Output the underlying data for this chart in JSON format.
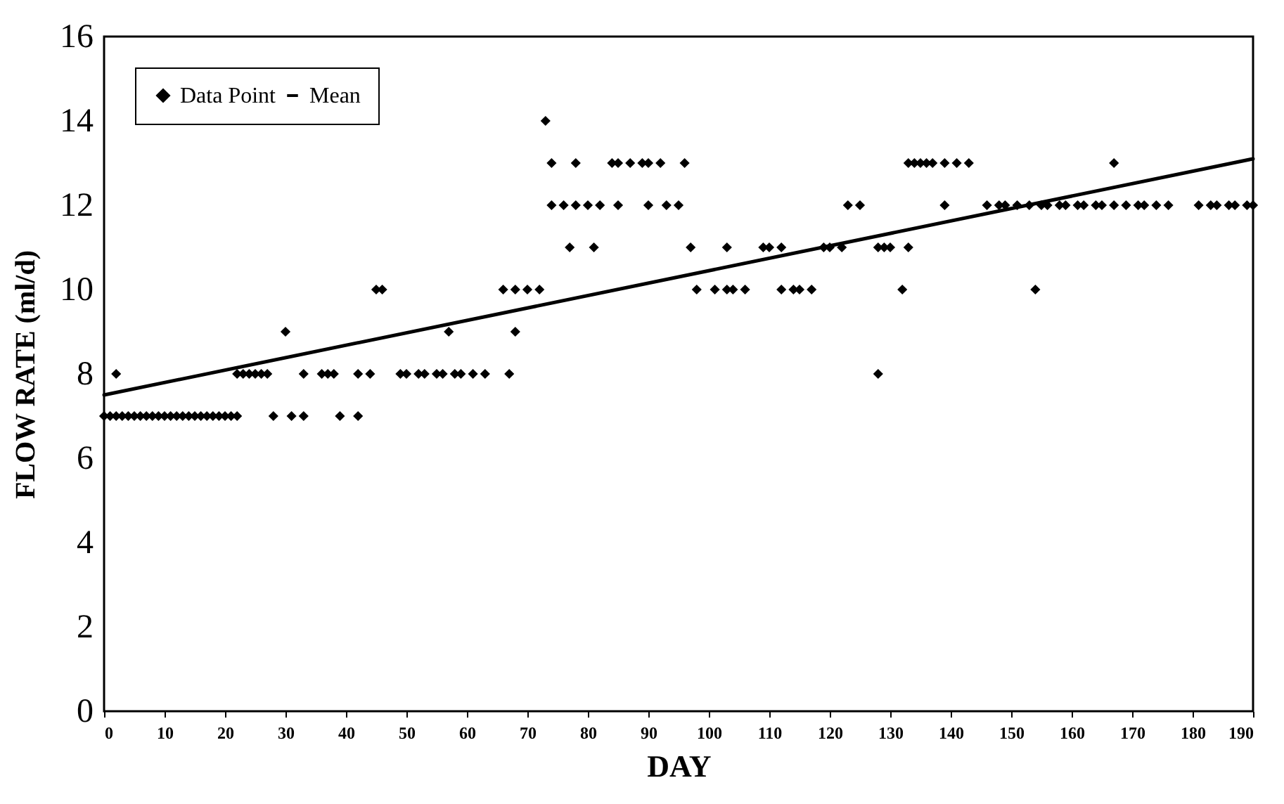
{
  "chart_data": {
    "type": "scatter",
    "xlabel": "DAY",
    "ylabel": "FLOW RATE (ml/d)",
    "xlim": [
      0,
      190
    ],
    "xticks": [
      0,
      10,
      20,
      30,
      40,
      50,
      60,
      70,
      80,
      90,
      100,
      110,
      120,
      130,
      140,
      150,
      160,
      170,
      180,
      190
    ],
    "ylim": [
      0,
      16
    ],
    "yticks": [
      0,
      2,
      4,
      6,
      8,
      10,
      12,
      14,
      16
    ],
    "grid": false,
    "legend": "top left",
    "series": [
      {
        "name": "Data Point",
        "color": "#000000",
        "marker": "diamond",
        "x": [
          0,
          1,
          2,
          3,
          4,
          5,
          6,
          7,
          8,
          9,
          10,
          11,
          12,
          13,
          14,
          15,
          16,
          17,
          18,
          19,
          20,
          21,
          22,
          28,
          31,
          33,
          39,
          42,
          2,
          22,
          23,
          24,
          25,
          26,
          27,
          33,
          36,
          37,
          38,
          42,
          44,
          49,
          50,
          52,
          53,
          55,
          56,
          58,
          59,
          61,
          63,
          67,
          128,
          30,
          57,
          68,
          45,
          46,
          66,
          68,
          70,
          72,
          98,
          101,
          103,
          104,
          106,
          112,
          114,
          115,
          117,
          132,
          154,
          77,
          81,
          97,
          103,
          109,
          110,
          112,
          119,
          120,
          122,
          128,
          129,
          130,
          133,
          74,
          76,
          78,
          80,
          82,
          85,
          90,
          93,
          95,
          123,
          125,
          139,
          146,
          148,
          149,
          151,
          153,
          155,
          156,
          158,
          159,
          161,
          162,
          164,
          165,
          167,
          169,
          171,
          172,
          174,
          176,
          181,
          183,
          184,
          186,
          187,
          189,
          190,
          74,
          78,
          84,
          85,
          87,
          89,
          90,
          92,
          96,
          133,
          134,
          135,
          136,
          137,
          139,
          141,
          143,
          167,
          73
        ],
        "values": [
          7,
          7,
          7,
          7,
          7,
          7,
          7,
          7,
          7,
          7,
          7,
          7,
          7,
          7,
          7,
          7,
          7,
          7,
          7,
          7,
          7,
          7,
          7,
          7,
          7,
          7,
          7,
          7,
          8,
          8,
          8,
          8,
          8,
          8,
          8,
          8,
          8,
          8,
          8,
          8,
          8,
          8,
          8,
          8,
          8,
          8,
          8,
          8,
          8,
          8,
          8,
          8,
          8,
          9,
          9,
          9,
          10,
          10,
          10,
          10,
          10,
          10,
          10,
          10,
          10,
          10,
          10,
          10,
          10,
          10,
          10,
          10,
          10,
          11,
          11,
          11,
          11,
          11,
          11,
          11,
          11,
          11,
          11,
          11,
          11,
          11,
          11,
          12,
          12,
          12,
          12,
          12,
          12,
          12,
          12,
          12,
          12,
          12,
          12,
          12,
          12,
          12,
          12,
          12,
          12,
          12,
          12,
          12,
          12,
          12,
          12,
          12,
          12,
          12,
          12,
          12,
          12,
          12,
          12,
          12,
          12,
          12,
          12,
          12,
          12,
          13,
          13,
          13,
          13,
          13,
          13,
          13,
          13,
          13,
          13,
          13,
          13,
          13,
          13,
          13,
          13,
          13,
          13,
          14
        ]
      },
      {
        "name": "Mean",
        "type": "line",
        "color": "#000000",
        "x": [
          0,
          190
        ],
        "values": [
          7.5,
          13.1
        ]
      }
    ]
  }
}
